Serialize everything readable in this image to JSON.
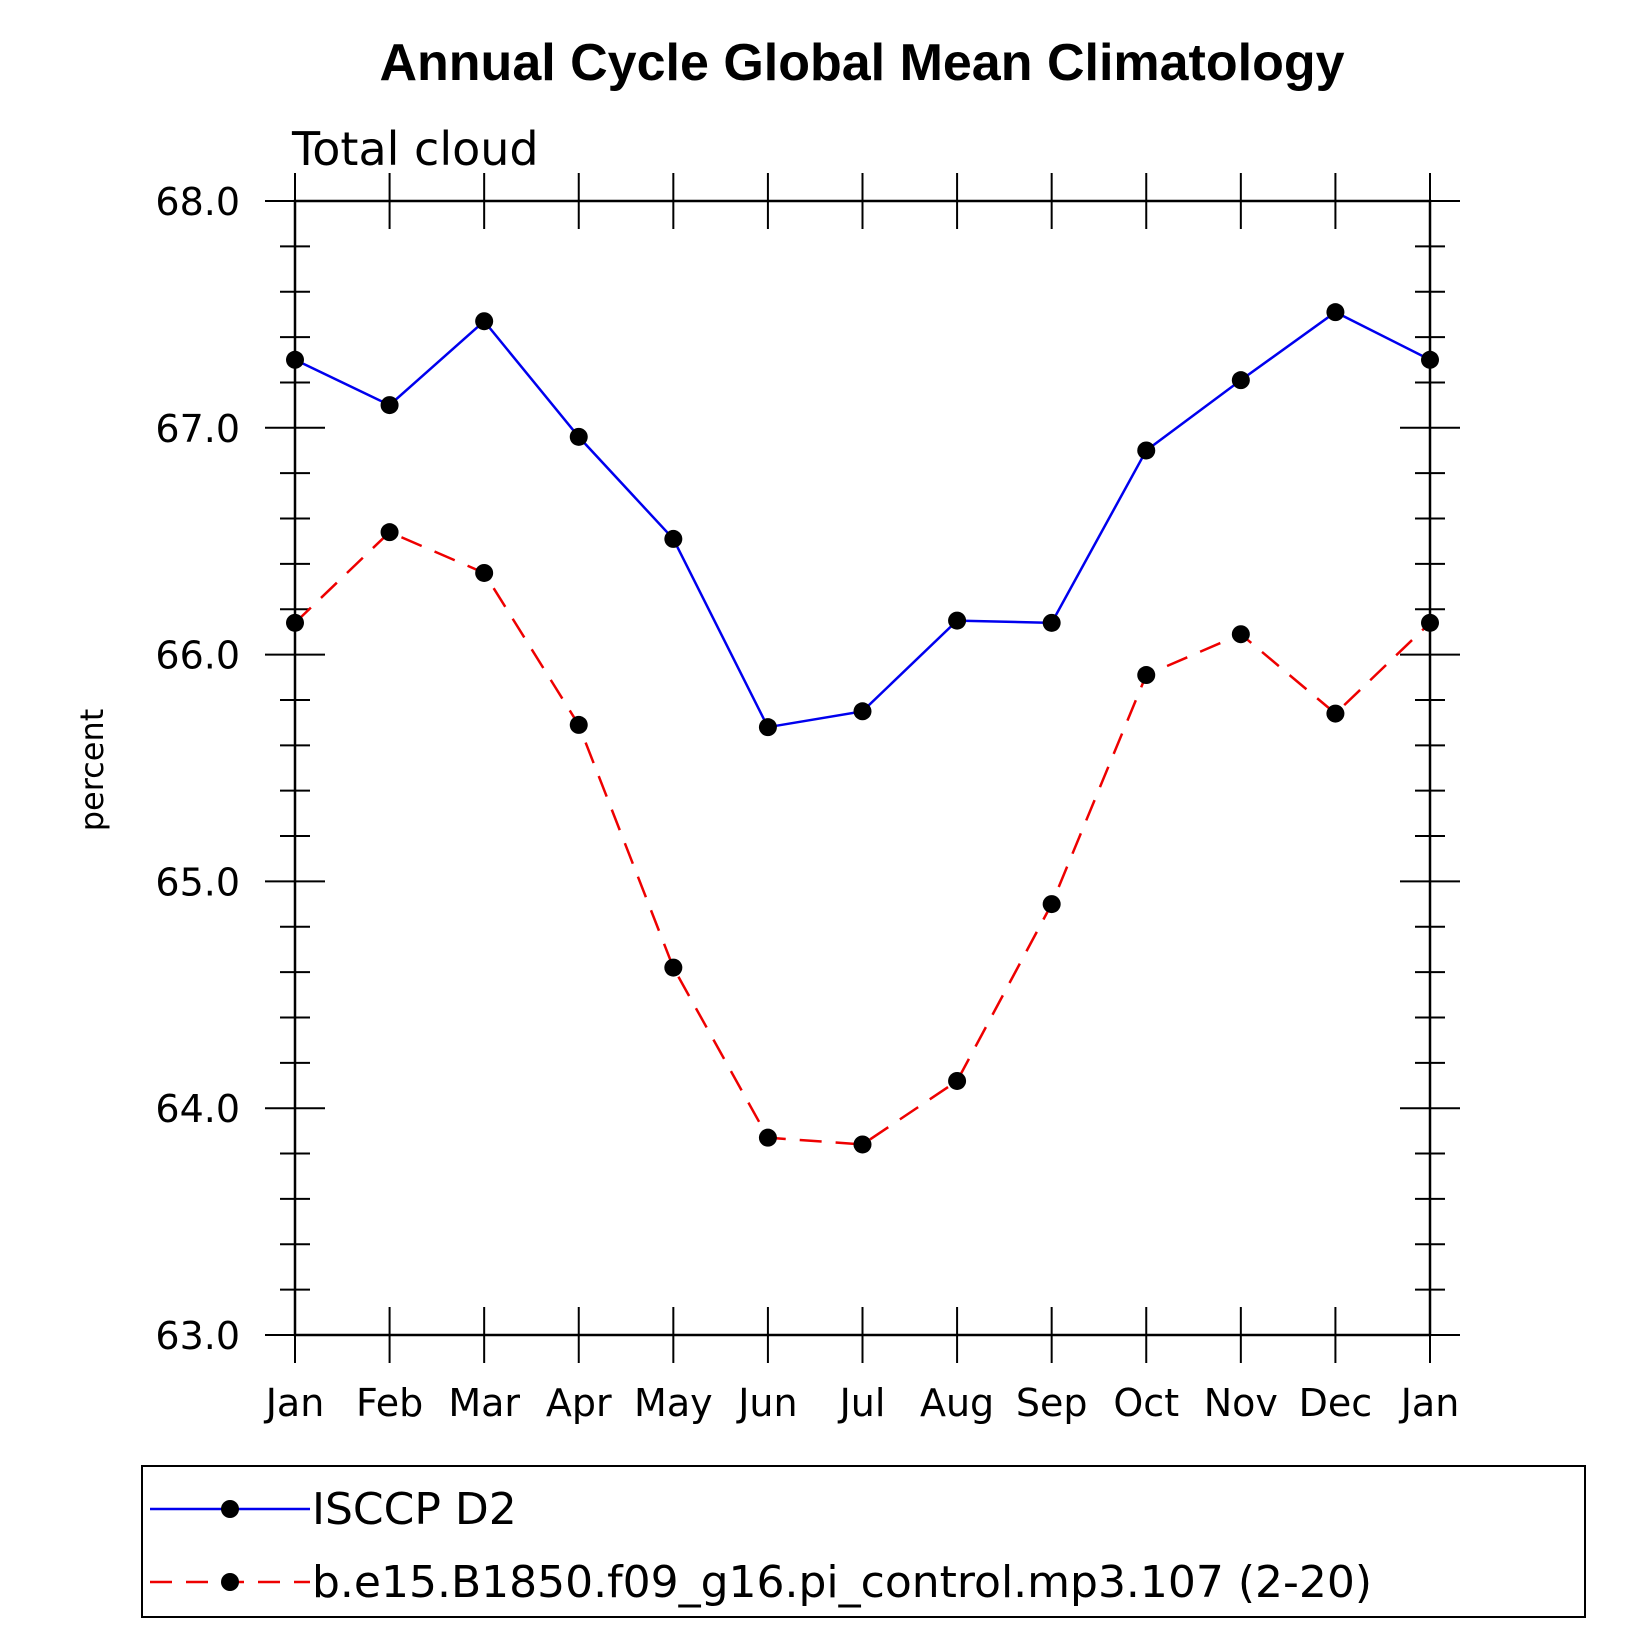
{
  "chart_data": {
    "type": "line",
    "title": "Annual Cycle Global Mean Climatology",
    "subtitle": "Total cloud",
    "xlabel": "",
    "ylabel": "percent",
    "ylim": [
      63.0,
      68.0
    ],
    "y_major_ticks": [
      "63.0",
      "64.0",
      "65.0",
      "66.0",
      "67.0",
      "68.0"
    ],
    "y_minor_step": 0.2,
    "categories": [
      "Jan",
      "Feb",
      "Mar",
      "Apr",
      "May",
      "Jun",
      "Jul",
      "Aug",
      "Sep",
      "Oct",
      "Nov",
      "Dec",
      "Jan"
    ],
    "grid": false,
    "legend_position": "bottom",
    "series": [
      {
        "name": "ISCCP D2",
        "color": "#0000ee",
        "dash": "solid",
        "values": [
          67.3,
          67.1,
          67.47,
          66.96,
          66.51,
          65.68,
          65.75,
          66.15,
          66.14,
          66.9,
          67.21,
          67.51,
          67.3
        ]
      },
      {
        "name": "b.e15.B1850.f09_g16.pi_control.mp3.107 (2-20)",
        "color": "#ee0000",
        "dash": "dashed",
        "values": [
          66.14,
          66.54,
          66.36,
          65.69,
          64.62,
          63.87,
          63.84,
          64.12,
          64.9,
          65.91,
          66.09,
          65.74,
          66.14
        ]
      }
    ]
  }
}
